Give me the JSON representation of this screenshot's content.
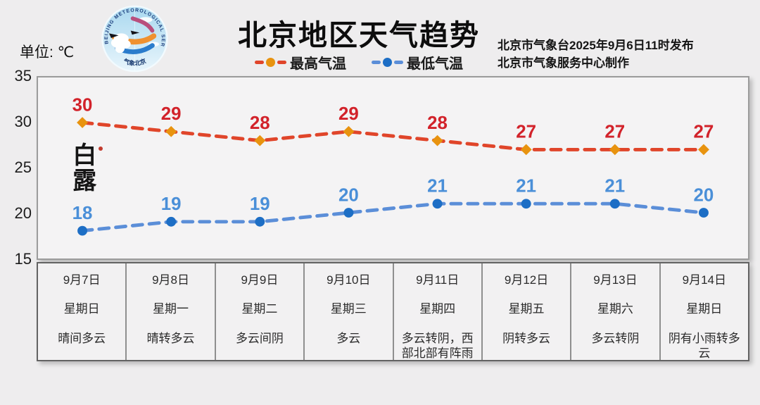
{
  "header": {
    "unit_label": "单位: ℃",
    "title": "北京地区天气趋势",
    "issuer_line1": "北京市气象台2025年9月6日11时发布",
    "issuer_line2": "北京市气象服务中心制作"
  },
  "logo": {
    "ring_text": "BEIJING METEOROLOGICAL SERVICE",
    "bottom_text": "气象北京"
  },
  "solar_term": "白露",
  "legend": [
    {
      "label": "最高气温",
      "dash_color": "#e0452a",
      "dot_color": "#e8930f"
    },
    {
      "label": "最低气温",
      "dash_color": "#5b8ed8",
      "dot_color": "#1d6ec5"
    }
  ],
  "chart_data": {
    "type": "line",
    "title": "北京地区天气趋势",
    "ylabel": "单位: ℃",
    "ylim": [
      15,
      35
    ],
    "yticks": [
      35,
      30,
      25,
      20,
      15
    ],
    "grid": false,
    "legend_position": "top-center",
    "categories": [
      "9月7日",
      "9月8日",
      "9月9日",
      "9月10日",
      "9月11日",
      "9月12日",
      "9月13日",
      "9月14日"
    ],
    "series": [
      {
        "name": "最高气温",
        "values": [
          30,
          29,
          28,
          29,
          28,
          27,
          27,
          27
        ],
        "line_color": "#e0452a",
        "marker_color": "#e8930f",
        "label_color": "#d2222a",
        "marker": "diamond"
      },
      {
        "name": "最低气温",
        "values": [
          18,
          19,
          19,
          20,
          21,
          21,
          21,
          20
        ],
        "line_color": "#5b8ed8",
        "marker_color": "#1d6ec5",
        "label_color": "#4a8fd8",
        "marker": "circle"
      }
    ]
  },
  "forecast_table": {
    "days": [
      {
        "date": "9月7日",
        "weekday": "星期日",
        "weather": "晴间多云"
      },
      {
        "date": "9月8日",
        "weekday": "星期一",
        "weather": "晴转多云"
      },
      {
        "date": "9月9日",
        "weekday": "星期二",
        "weather": "多云间阴"
      },
      {
        "date": "9月10日",
        "weekday": "星期三",
        "weather": "多云"
      },
      {
        "date": "9月11日",
        "weekday": "星期四",
        "weather": "多云转阴，西部北部有阵雨"
      },
      {
        "date": "9月12日",
        "weekday": "星期五",
        "weather": "阴转多云"
      },
      {
        "date": "9月13日",
        "weekday": "星期六",
        "weather": "多云转阴"
      },
      {
        "date": "9月14日",
        "weekday": "星期日",
        "weather": "阴有小雨转多云"
      }
    ]
  }
}
